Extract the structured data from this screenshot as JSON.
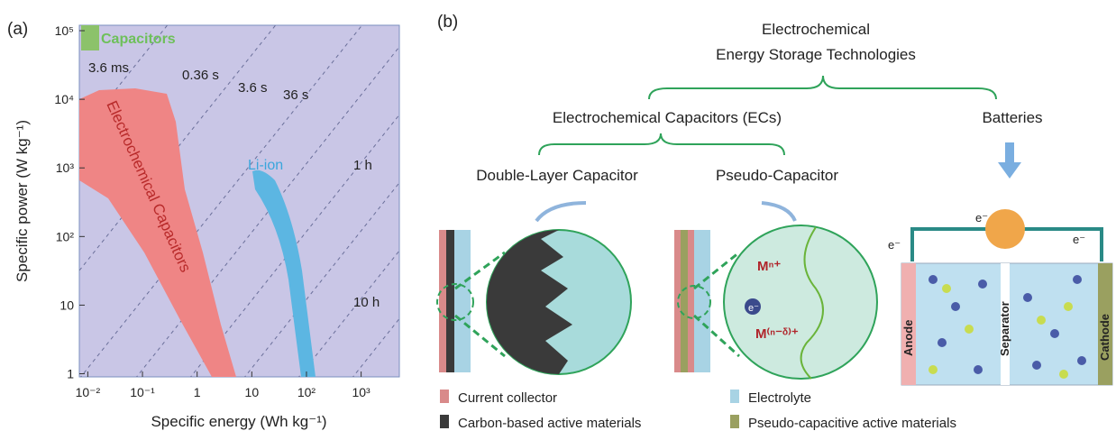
{
  "panel_a": {
    "label": "(a)",
    "type": "log-log plot",
    "x_label": "Specific energy (Wh kg⁻¹)",
    "y_label": "Specific power (W kg⁻¹)",
    "xlim": [
      0.007,
      5000
    ],
    "ylim": [
      0.9,
      120000
    ],
    "xticks": [
      {
        "value": 0.01,
        "label": "10⁻²"
      },
      {
        "value": 0.1,
        "label": "10⁻¹"
      },
      1,
      10,
      {
        "value": 100,
        "label": "10²"
      },
      {
        "value": 1000,
        "label": "10³"
      }
    ],
    "yticks": [
      1,
      10,
      {
        "value": 100,
        "label": "10²"
      },
      {
        "value": 1000,
        "label": "10³"
      },
      {
        "value": 10000,
        "label": "10⁴"
      },
      {
        "value": 100000,
        "label": "10⁵"
      }
    ],
    "regions": [
      "Capacitors",
      "Electrochemical Capacitors",
      "Li-ion"
    ],
    "time_labels": [
      "3.6 ms",
      "0.36 s",
      "3.6 s",
      "36 s",
      "1 h",
      "10 h"
    ]
  },
  "panel_b": {
    "label": "(b)",
    "title_lines": [
      "Electrochemical",
      "Energy Storage Technologies"
    ],
    "branches": [
      "Electrochemical Capacitors (ECs)",
      "Batteries"
    ],
    "subbranches": [
      "Double-Layer Capacitor",
      "Pseudo-Capacitor"
    ],
    "ion_labels": [
      "Mⁿ⁺",
      "M⁽ⁿ⁻ᵟ⁾⁺"
    ],
    "electron": "e⁻",
    "battery_labels": [
      "Anode",
      "Separator",
      "Cathode"
    ],
    "legend": [
      "Current collector",
      "Carbon-based active materials",
      "Electrolyte",
      "Pseudo-capacitive active materials"
    ]
  }
}
